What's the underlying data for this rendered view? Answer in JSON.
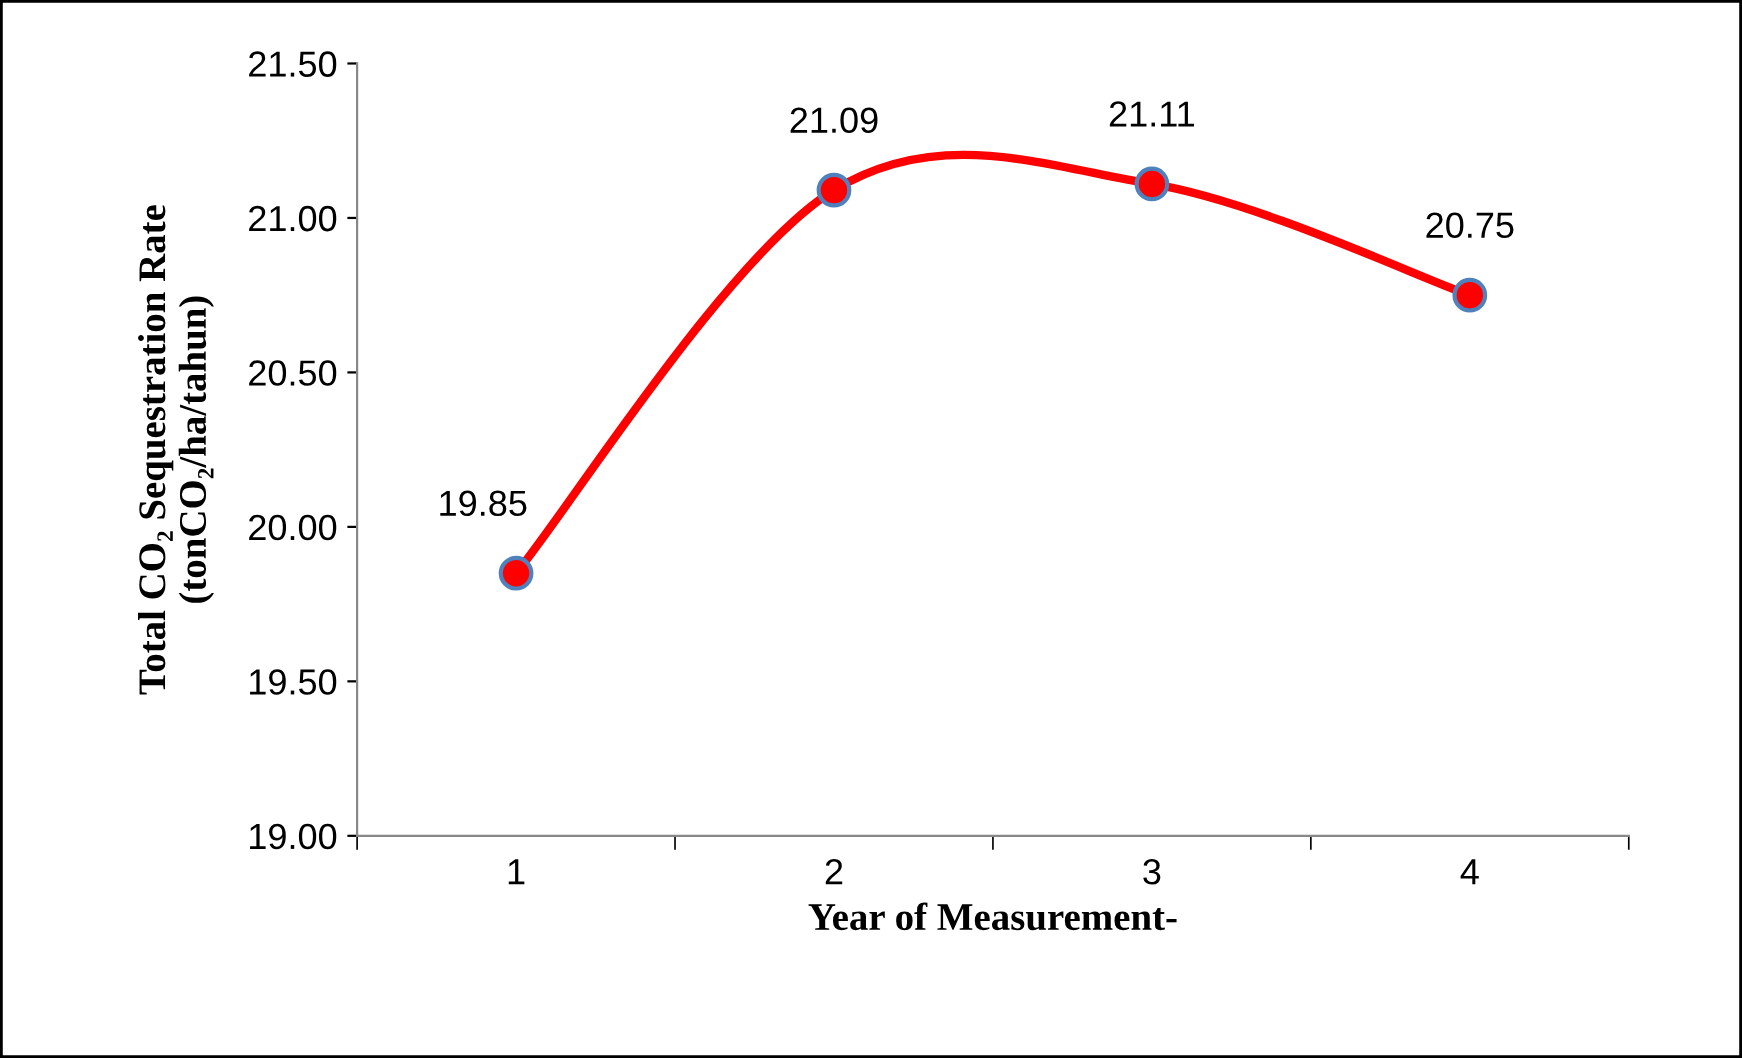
{
  "chart_data": {
    "type": "line",
    "xlabel": "Year of Measurement-",
    "ylabel": "Total CO₂ Sequestration Rate\n(tonCO₂/ha/tahun)",
    "categories": [
      "1",
      "2",
      "3",
      "4"
    ],
    "series": [
      {
        "color": "#ff0000",
        "values": [
          19.85,
          21.09,
          21.11,
          20.75
        ]
      }
    ],
    "ylim": [
      19.0,
      21.5
    ],
    "yticks": [
      {
        "value": 19.0,
        "label": "19.00"
      },
      {
        "value": 19.5,
        "label": "19.50"
      },
      {
        "value": 20.0,
        "label": "20.00"
      },
      {
        "value": 20.5,
        "label": "20.50"
      },
      {
        "value": 21.0,
        "label": "21.00"
      },
      {
        "value": 21.5,
        "label": "21.50"
      }
    ],
    "data_labels": true,
    "grid": false,
    "legend": false,
    "marker": "circle",
    "line_style": "solid"
  }
}
